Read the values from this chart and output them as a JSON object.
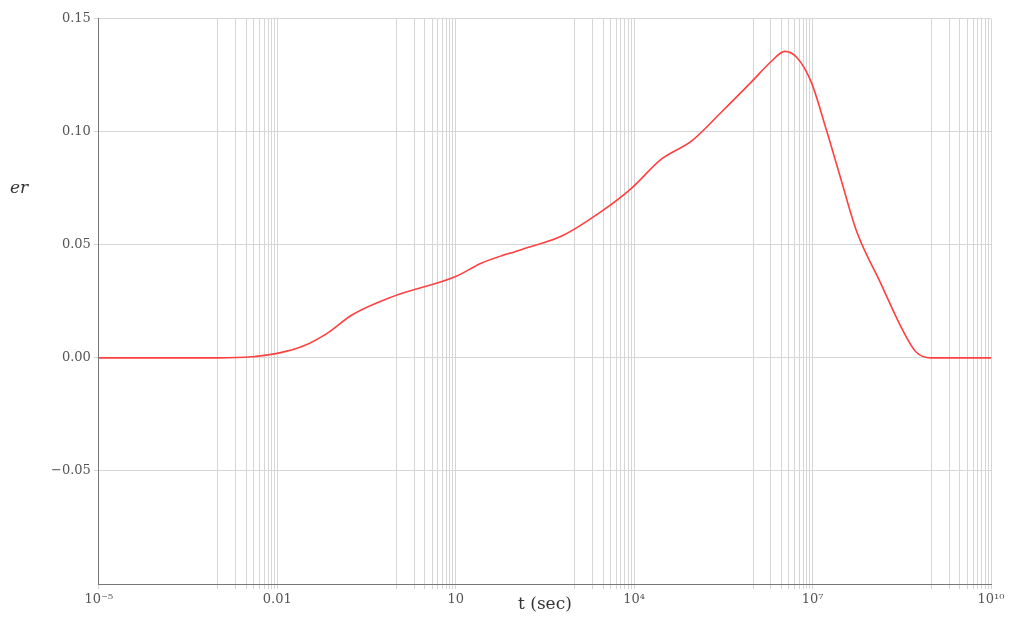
{
  "chart_data": {
    "type": "line",
    "xlabel": "t (sec)",
    "ylabel": "er",
    "log": "x",
    "grid": true,
    "marker": "none",
    "line_style": "solid",
    "x": [
      1e-05,
      0.001,
      0.0038,
      0.01,
      0.026,
      0.07,
      0.18,
      0.85,
      10,
      27.5,
      130,
      620,
      2900,
      9000,
      29000,
      93000,
      300000,
      930000,
      2000000,
      3400000,
      5400000,
      9500000,
      17000000,
      30000000,
      55000000,
      140000000,
      310000000,
      550000000,
      980000000,
      10000000000
    ],
    "series": [
      {
        "color": "#ff4040",
        "values": [
          0,
          0,
          0.0005,
          0.002,
          0.005,
          0.011,
          0.019,
          0.027,
          0.036,
          0.042,
          0.048,
          0.054,
          0.065,
          0.075,
          0.088,
          0.096,
          0.109,
          0.122,
          0.131,
          0.1356,
          0.133,
          0.122,
          0.101,
          0.079,
          0.056,
          0.033,
          0.0135,
          0.0026,
          0,
          0
        ]
      }
    ],
    "xlim": [
      1e-05,
      10000000000
    ],
    "xticks": [
      {
        "value": 1e-05,
        "label": "10⁻⁵"
      },
      {
        "value": 0.001,
        "label": null
      },
      {
        "value": 0.002,
        "label": null
      },
      {
        "value": 0.003,
        "label": null
      },
      {
        "value": 0.004,
        "label": null
      },
      {
        "value": 0.005,
        "label": null
      },
      {
        "value": 0.006,
        "label": null
      },
      {
        "value": 0.007,
        "label": null
      },
      {
        "value": 0.008,
        "label": null
      },
      {
        "value": 0.009,
        "label": null
      },
      {
        "value": 0.01,
        "label": "0.01"
      },
      {
        "value": 1,
        "label": null
      },
      {
        "value": 2,
        "label": null
      },
      {
        "value": 3,
        "label": null
      },
      {
        "value": 4,
        "label": null
      },
      {
        "value": 5,
        "label": null
      },
      {
        "value": 6,
        "label": null
      },
      {
        "value": 7,
        "label": null
      },
      {
        "value": 8,
        "label": null
      },
      {
        "value": 9,
        "label": null
      },
      {
        "value": 10,
        "label": "10"
      },
      {
        "value": 1000,
        "label": null
      },
      {
        "value": 2000,
        "label": null
      },
      {
        "value": 3000,
        "label": null
      },
      {
        "value": 4000,
        "label": null
      },
      {
        "value": 5000,
        "label": null
      },
      {
        "value": 6000,
        "label": null
      },
      {
        "value": 7000,
        "label": null
      },
      {
        "value": 8000,
        "label": null
      },
      {
        "value": 9000,
        "label": null
      },
      {
        "value": 10000,
        "label": "10⁴"
      },
      {
        "value": 1000000,
        "label": null
      },
      {
        "value": 2000000,
        "label": null
      },
      {
        "value": 3000000,
        "label": null
      },
      {
        "value": 4000000,
        "label": null
      },
      {
        "value": 5000000,
        "label": null
      },
      {
        "value": 6000000,
        "label": null
      },
      {
        "value": 7000000,
        "label": null
      },
      {
        "value": 8000000,
        "label": null
      },
      {
        "value": 9000000,
        "label": null
      },
      {
        "value": 10000000,
        "label": "10⁷"
      },
      {
        "value": 1000000000,
        "label": null
      },
      {
        "value": 2000000000,
        "label": null
      },
      {
        "value": 3000000000,
        "label": null
      },
      {
        "value": 4000000000,
        "label": null
      },
      {
        "value": 5000000000,
        "label": null
      },
      {
        "value": 6000000000,
        "label": null
      },
      {
        "value": 7000000000,
        "label": null
      },
      {
        "value": 8000000000,
        "label": null
      },
      {
        "value": 9000000000,
        "label": null
      },
      {
        "value": 10000000000,
        "label": "10¹⁰"
      }
    ],
    "ylim": [
      -0.1,
      0.15
    ],
    "yticks": [
      {
        "value": -0.05,
        "label": "−0.05"
      },
      {
        "value": 0,
        "label": "0.00"
      },
      {
        "value": 0.05,
        "label": "0.05"
      },
      {
        "value": 0.1,
        "label": "0.10"
      },
      {
        "value": 0.15,
        "label": "0.15"
      }
    ]
  }
}
